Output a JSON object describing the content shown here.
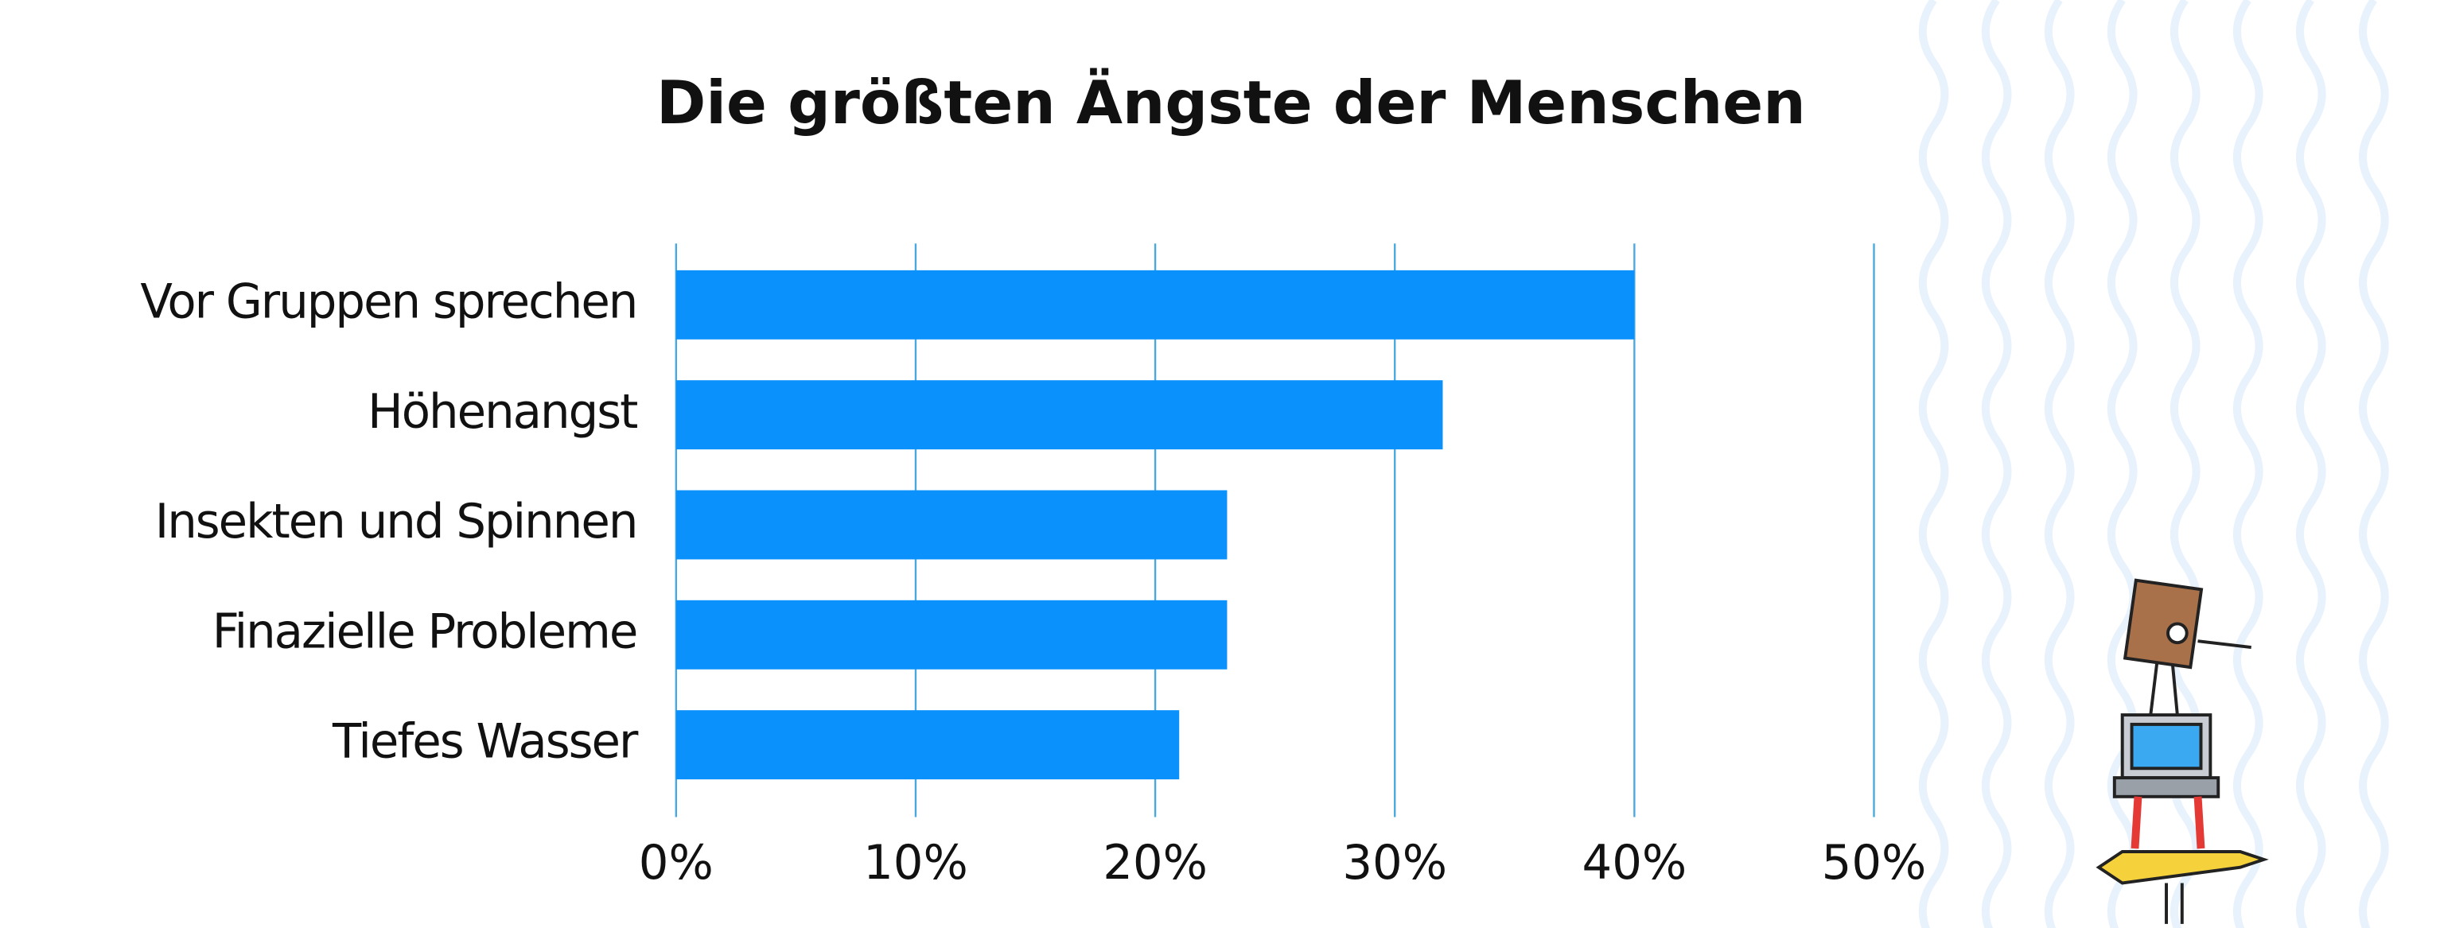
{
  "chart_data": {
    "type": "bar",
    "orientation": "horizontal",
    "title": "Die größten Ängste der Menschen",
    "categories": [
      "Vor Gruppen sprechen",
      "Höhenangst",
      "Insekten und Spinnen",
      "Finazielle Probleme",
      "Tiefes Wasser"
    ],
    "values": [
      40,
      32,
      23,
      23,
      21
    ],
    "color": "#0a91fb",
    "xlim": [
      0,
      50
    ],
    "xticks": [
      {
        "value": 0,
        "label": "0%"
      },
      {
        "value": 10,
        "label": "10%"
      },
      {
        "value": 20,
        "label": "20%"
      },
      {
        "value": 30,
        "label": "30%"
      },
      {
        "value": 40,
        "label": "40%"
      },
      {
        "value": 50,
        "label": "50%"
      }
    ],
    "grid": true
  }
}
